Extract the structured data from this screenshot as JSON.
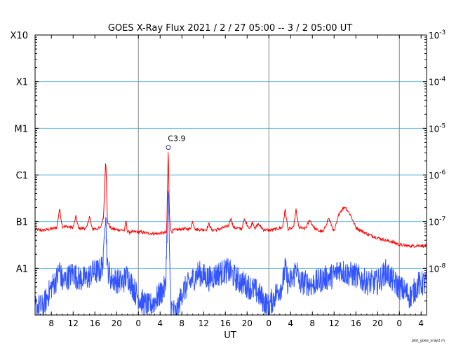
{
  "chart_data": {
    "type": "line",
    "title": "GOES X-Ray Flux   2021 /  2 / 27   05:00 --  3 /  2   05:00   UT",
    "xlabel": "UT",
    "xlim_hours": [
      0,
      72
    ],
    "x_ticks": [
      {
        "h": 3,
        "label": "8"
      },
      {
        "h": 7,
        "label": "12"
      },
      {
        "h": 11,
        "label": "16"
      },
      {
        "h": 15,
        "label": "20"
      },
      {
        "h": 19,
        "label": "0"
      },
      {
        "h": 23,
        "label": "4"
      },
      {
        "h": 27,
        "label": "8"
      },
      {
        "h": 31,
        "label": "12"
      },
      {
        "h": 35,
        "label": "16"
      },
      {
        "h": 39,
        "label": "20"
      },
      {
        "h": 43,
        "label": "0"
      },
      {
        "h": 47,
        "label": "4"
      },
      {
        "h": 51,
        "label": "8"
      },
      {
        "h": 55,
        "label": "12"
      },
      {
        "h": 59,
        "label": "16"
      },
      {
        "h": 63,
        "label": "20"
      },
      {
        "h": 67,
        "label": "0"
      },
      {
        "h": 71,
        "label": "4"
      }
    ],
    "day_lines_hours": [
      19,
      43,
      67
    ],
    "y_log_range": [
      -9,
      -3
    ],
    "y_left_labels": [
      {
        "exp": -3,
        "label": "X10"
      },
      {
        "exp": -4,
        "label": "X1"
      },
      {
        "exp": -5,
        "label": "M1"
      },
      {
        "exp": -6,
        "label": "C1"
      },
      {
        "exp": -7,
        "label": "B1"
      },
      {
        "exp": -8,
        "label": "A1"
      }
    ],
    "y_right_labels": [
      {
        "exp": -3,
        "base": "10",
        "sup": "-3"
      },
      {
        "exp": -4,
        "base": "10",
        "sup": "-4"
      },
      {
        "exp": -5,
        "base": "10",
        "sup": "-5"
      },
      {
        "exp": -6,
        "base": "10",
        "sup": "-6"
      },
      {
        "exp": -7,
        "base": "10",
        "sup": "-7"
      },
      {
        "exp": -8,
        "base": "10",
        "sup": "-8"
      }
    ],
    "grid_levels_exp": [
      -4,
      -5,
      -6,
      -7,
      -8
    ],
    "colors": {
      "long": "#ff0000",
      "short": "#3355ff",
      "grid": "#66bbdd",
      "dayline": "#888888"
    },
    "series": [
      {
        "key": "long",
        "x": [
          0,
          1.5,
          3,
          4.0,
          4.5,
          5,
          7,
          7.5,
          8,
          9.5,
          10.0,
          10.5,
          12.0,
          12.6,
          12.8,
          13.0,
          13.3,
          14,
          16.5,
          16.7,
          17,
          19.0,
          19.5,
          20.0,
          22.0,
          24.2,
          24.5,
          24.7,
          25.0,
          25.5,
          27,
          28.5,
          29.0,
          29.5,
          31.5,
          32.0,
          32.5,
          34,
          35.5,
          36.0,
          36.5,
          38.0,
          38.5,
          39.5,
          40.0,
          40.5,
          41.0,
          42.0,
          43.0,
          44.0,
          45.5,
          46.0,
          46.5,
          47.5,
          48.0,
          48.5,
          49.5,
          50.0,
          50.5,
          51.0,
          51.5,
          52.0,
          53,
          54.0,
          55.0,
          56.0,
          57.0,
          58.0,
          59,
          61,
          63,
          64.5,
          66,
          67,
          69,
          70.5,
          72
        ],
        "y": [
          6.8e-08,
          6.5e-08,
          7e-08,
          7.5e-08,
          1.9e-07,
          8e-08,
          7.5e-08,
          1.3e-07,
          7.2e-08,
          7.3e-08,
          1.3e-07,
          7e-08,
          7.2e-08,
          1.3e-07,
          6e-07,
          2.5e-06,
          1e-07,
          7e-08,
          6.5e-08,
          1.1e-07,
          6e-08,
          6e-08,
          6e-08,
          5.8e-08,
          5.5e-08,
          5.8e-08,
          3.9e-06,
          1.5e-07,
          6e-08,
          6.5e-08,
          7e-08,
          7e-08,
          1e-07,
          6.8e-08,
          6.8e-08,
          9e-08,
          6.5e-08,
          7e-08,
          8e-08,
          1.2e-07,
          7.5e-08,
          7e-08,
          1.1e-07,
          7e-08,
          1e-07,
          7e-08,
          9e-08,
          6.8e-08,
          6.5e-08,
          6.8e-08,
          7.5e-08,
          1.8e-07,
          7e-08,
          7.2e-08,
          1.8e-07,
          7.5e-08,
          7e-08,
          8e-08,
          1.1e-07,
          8.5e-08,
          7e-08,
          6.5e-08,
          6e-08,
          1.2e-07,
          6e-08,
          1.6e-07,
          2.1e-07,
          1.4e-07,
          7.5e-08,
          5.5e-08,
          4.5e-08,
          4e-08,
          3.6e-08,
          3.2e-08,
          3e-08,
          3.1e-08,
          3e-08
        ]
      },
      {
        "key": "short",
        "x": [
          0,
          1.5,
          3,
          4.0,
          4.5,
          5,
          7,
          8,
          9.5,
          10.5,
          12.0,
          12.6,
          12.8,
          13.0,
          13.3,
          14,
          16,
          17,
          18.5,
          19.5,
          21,
          22.0,
          24.0,
          24.5,
          24.7,
          25.0,
          26,
          27,
          28.5,
          30,
          32,
          34,
          35.5,
          37,
          38,
          39.5,
          41,
          42,
          43,
          44,
          45.5,
          46.0,
          46.5,
          47.5,
          48.0,
          48.5,
          49.5,
          51,
          53,
          55,
          56,
          57,
          59,
          61,
          63,
          64.5,
          66,
          67,
          69,
          70.5,
          72
        ],
        "y": [
          1.5e-09,
          1.5e-09,
          4e-09,
          6e-09,
          1e-08,
          5e-09,
          8e-09,
          6e-09,
          6e-09,
          8e-09,
          9e-09,
          1.5e-08,
          1.2e-07,
          1.5e-07,
          1e-08,
          6e-09,
          5e-09,
          7e-09,
          3e-09,
          2e-09,
          1.5e-09,
          2e-09,
          4e-09,
          6e-07,
          2e-08,
          1.5e-09,
          1e-09,
          3e-09,
          5e-09,
          8e-09,
          6e-09,
          8e-09,
          9e-09,
          6e-09,
          5e-09,
          4e-09,
          3e-09,
          2e-09,
          1.5e-09,
          2.5e-09,
          4.5e-09,
          1e-08,
          5e-09,
          6e-09,
          1.2e-08,
          5e-09,
          5e-09,
          4.5e-09,
          6e-09,
          7e-09,
          1e-08,
          8e-09,
          7e-09,
          5e-09,
          5e-09,
          8.5e-09,
          5e-09,
          4e-09,
          2.5e-09,
          4.5e-09,
          5e-09
        ]
      }
    ],
    "annotation": {
      "label": "C3.9",
      "x_hours": 24.5,
      "y": 3.9e-06
    }
  },
  "footer": {
    "credit": "plot_goes_xray2.m"
  }
}
